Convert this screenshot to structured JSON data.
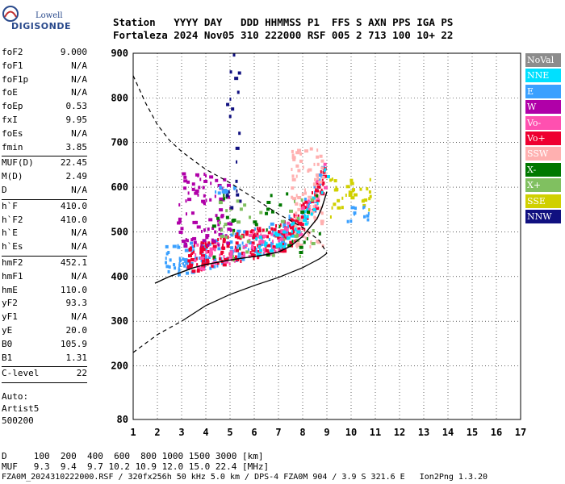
{
  "logo": {
    "line1": "Lowell",
    "line2": "DIGISONDE"
  },
  "header": {
    "row1": "Station   YYYY DAY   DDD HHMMSS P1  FFS S AXN PPS IGA PS",
    "row2": "Fortaleza 2024 Nov05 310 222000 RSF 005 2 713 100 10+ 22"
  },
  "params": {
    "group1": [
      {
        "label": "foF2",
        "value": "9.000"
      },
      {
        "label": "foF1",
        "value": "N/A"
      },
      {
        "label": "foF1p",
        "value": "N/A"
      },
      {
        "label": "foE",
        "value": "N/A"
      },
      {
        "label": "foEp",
        "value": "0.53"
      },
      {
        "label": "fxI",
        "value": "9.95"
      },
      {
        "label": "foEs",
        "value": "N/A"
      },
      {
        "label": "fmin",
        "value": "3.85"
      }
    ],
    "group2": [
      {
        "label": "MUF(D)",
        "value": "22.45"
      },
      {
        "label": "M(D)",
        "value": "2.49"
      },
      {
        "label": "D",
        "value": "N/A"
      }
    ],
    "group3": [
      {
        "label": "h`F",
        "value": "410.0"
      },
      {
        "label": "h`F2",
        "value": "410.0"
      },
      {
        "label": "h`E",
        "value": "N/A"
      },
      {
        "label": "h`Es",
        "value": "N/A"
      }
    ],
    "group4": [
      {
        "label": "hmF2",
        "value": "452.1"
      },
      {
        "label": "hmF1",
        "value": "N/A"
      },
      {
        "label": "hmE",
        "value": "110.0"
      },
      {
        "label": "yF2",
        "value": "93.3"
      },
      {
        "label": "yF1",
        "value": "N/A"
      },
      {
        "label": "yE",
        "value": "20.0"
      },
      {
        "label": "B0",
        "value": "105.9"
      },
      {
        "label": "B1",
        "value": "1.31"
      }
    ],
    "group5": [
      {
        "label": "C-level",
        "value": "22"
      }
    ]
  },
  "auto": {
    "line1": "Auto:",
    "line2": "Artist5",
    "line3": "500200"
  },
  "footer": {
    "d_row": "D     100  200  400  600  800 1000 1500 3000 [km]",
    "muf_row": "MUF   9.3  9.4  9.7 10.2 10.9 12.0 15.0 22.4 [MHz]",
    "file_line": "FZA0M_2024310222000.RSF / 320fx256h 50 kHz 5.0 km / DPS-4 FZA0M 904 / 3.9 S 321.6 E   Ion2Png 1.3.20"
  },
  "legend": [
    {
      "label": "NoVal",
      "color": "#8c8c8c"
    },
    {
      "label": "NNE",
      "color": "#00e0ff"
    },
    {
      "label": "E",
      "color": "#3aa0ff"
    },
    {
      "label": "W",
      "color": "#b000a8"
    },
    {
      "label": "Vo-",
      "color": "#ff50b0"
    },
    {
      "label": "Vo+",
      "color": "#ee0030"
    },
    {
      "label": "SSW",
      "color": "#ffb0b0"
    },
    {
      "label": "X-",
      "color": "#007800"
    },
    {
      "label": "X+",
      "color": "#80c060"
    },
    {
      "label": "SSE",
      "color": "#d0d000"
    },
    {
      "label": "NNW",
      "color": "#101080"
    }
  ],
  "chart_data": {
    "type": "scatter",
    "xlim": [
      1,
      17
    ],
    "ylim": [
      80,
      900
    ],
    "x_ticks": [
      1,
      2,
      3,
      4,
      5,
      6,
      7,
      8,
      9,
      10,
      11,
      12,
      13,
      14,
      15,
      16,
      17
    ],
    "y_ticks": [
      80,
      200,
      300,
      400,
      500,
      600,
      700,
      800,
      900
    ],
    "grid": true,
    "legend_position": "right",
    "trace_solid": [
      [
        1.9,
        385
      ],
      [
        2.5,
        400
      ],
      [
        3.0,
        410
      ],
      [
        3.5,
        420
      ],
      [
        4.0,
        427
      ],
      [
        4.5,
        432
      ],
      [
        5.0,
        437
      ],
      [
        5.5,
        441
      ],
      [
        6.0,
        445
      ],
      [
        6.5,
        449
      ],
      [
        7.0,
        455
      ],
      [
        7.5,
        468
      ],
      [
        8.0,
        490
      ],
      [
        8.3,
        510
      ],
      [
        8.6,
        530
      ],
      [
        8.8,
        555
      ],
      [
        9.0,
        590
      ]
    ],
    "profile_solid": [
      [
        1.9,
        385
      ],
      [
        3.0,
        410
      ],
      [
        4.0,
        428
      ],
      [
        5.0,
        437
      ],
      [
        6.0,
        445
      ],
      [
        7.0,
        455
      ]
    ],
    "profile_lower": [
      [
        3.0,
        300
      ],
      [
        4.0,
        335
      ],
      [
        5.0,
        360
      ],
      [
        6.0,
        380
      ],
      [
        7.0,
        398
      ],
      [
        8.0,
        420
      ],
      [
        8.7,
        440
      ],
      [
        9.0,
        452
      ]
    ],
    "profile_dashed_lower": [
      [
        1.0,
        230
      ],
      [
        1.5,
        250
      ],
      [
        2.0,
        270
      ],
      [
        2.5,
        285
      ],
      [
        3.0,
        300
      ]
    ],
    "profile_dashed_upper": [
      [
        1.0,
        850
      ],
      [
        1.5,
        790
      ],
      [
        2.0,
        740
      ],
      [
        2.5,
        705
      ],
      [
        3.0,
        680
      ],
      [
        4.0,
        640
      ],
      [
        5.0,
        610
      ],
      [
        6.0,
        575
      ],
      [
        7.0,
        540
      ],
      [
        8.0,
        510
      ],
      [
        8.7,
        480
      ],
      [
        9.0,
        452
      ]
    ],
    "clusters": [
      {
        "legend": 2,
        "x0": 2.3,
        "x1": 8.8,
        "y0": 395,
        "y1": 600,
        "n": 180,
        "band": true
      },
      {
        "legend": 5,
        "x0": 3.2,
        "x1": 8.9,
        "y0": 420,
        "y1": 610,
        "n": 220,
        "band": true
      },
      {
        "legend": 4,
        "x0": 3.5,
        "x1": 8.9,
        "y0": 430,
        "y1": 600,
        "n": 80,
        "band": true
      },
      {
        "legend": 3,
        "x0": 2.8,
        "x1": 5.0,
        "y0": 470,
        "y1": 640,
        "n": 90,
        "band": false
      },
      {
        "legend": 6,
        "x0": 7.5,
        "x1": 8.8,
        "y0": 470,
        "y1": 690,
        "n": 90,
        "band": false
      },
      {
        "legend": 1,
        "x0": 6.0,
        "x1": 9.0,
        "y0": 420,
        "y1": 560,
        "n": 40,
        "band": true
      },
      {
        "legend": 9,
        "x0": 9.1,
        "x1": 10.8,
        "y0": 530,
        "y1": 625,
        "n": 35,
        "band": false
      },
      {
        "legend": 2,
        "x0": 9.8,
        "x1": 10.8,
        "y0": 520,
        "y1": 560,
        "n": 12,
        "band": false
      },
      {
        "legend": 7,
        "x0": 4.0,
        "x1": 8.8,
        "y0": 440,
        "y1": 600,
        "n": 35,
        "band": false
      },
      {
        "legend": 8,
        "x0": 4.5,
        "x1": 8.5,
        "y0": 440,
        "y1": 590,
        "n": 35,
        "band": false
      },
      {
        "legend": 10,
        "x0": 4.8,
        "x1": 5.4,
        "y0": 540,
        "y1": 900,
        "n": 20,
        "band": false
      },
      {
        "legend": 2,
        "x0": 4.2,
        "x1": 5.3,
        "y0": 590,
        "y1": 605,
        "n": 10,
        "band": false
      }
    ]
  }
}
